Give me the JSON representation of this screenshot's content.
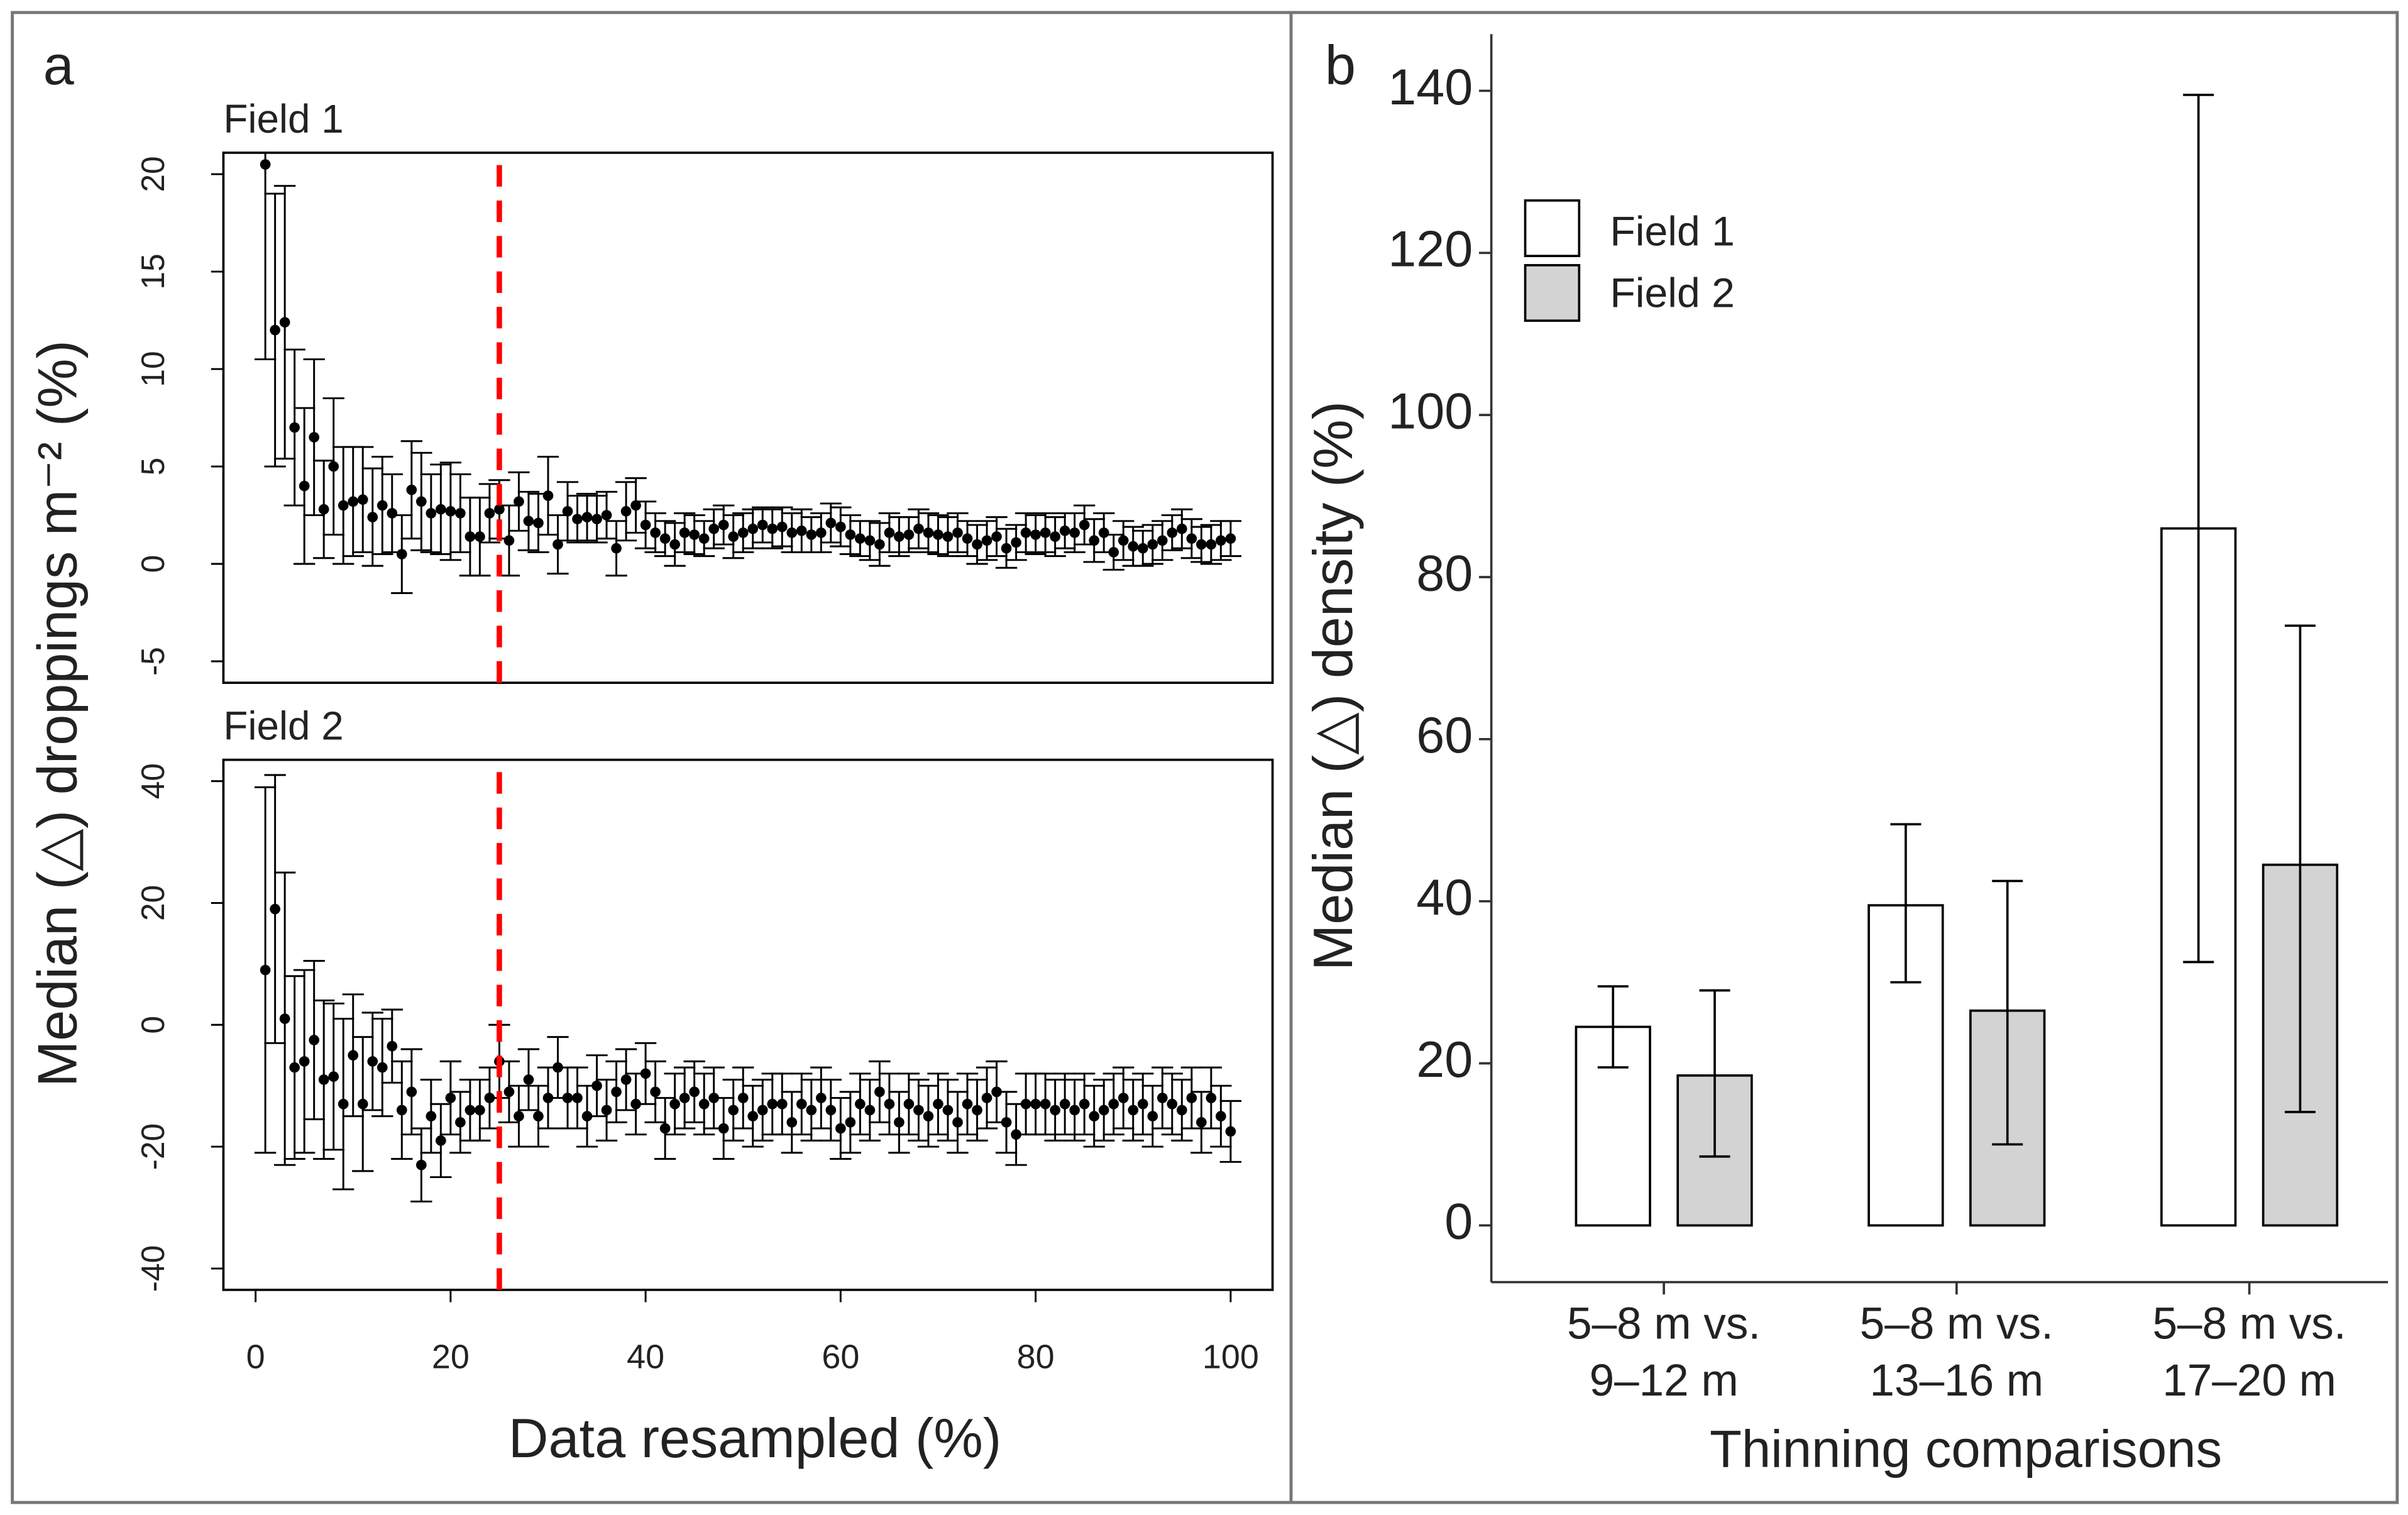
{
  "chart_data": [
    {
      "type": "scatter",
      "panel_label": "a",
      "title": "Field 1",
      "ylabel": "Median (△) droppings m⁻² (%)",
      "x": [
        1,
        2,
        3,
        4,
        5,
        6,
        7,
        8,
        9,
        10,
        11,
        12,
        13,
        14,
        15,
        16,
        17,
        18,
        19,
        20,
        21,
        22,
        23,
        24,
        25,
        26,
        27,
        28,
        29,
        30,
        31,
        32,
        33,
        34,
        35,
        36,
        37,
        38,
        39,
        40,
        41,
        42,
        43,
        44,
        45,
        46,
        47,
        48,
        49,
        50,
        51,
        52,
        53,
        54,
        55,
        56,
        57,
        58,
        59,
        60,
        61,
        62,
        63,
        64,
        65,
        66,
        67,
        68,
        69,
        70,
        71,
        72,
        73,
        74,
        75,
        76,
        77,
        78,
        79,
        80,
        81,
        82,
        83,
        84,
        85,
        86,
        87,
        88,
        89,
        90,
        91,
        92,
        93,
        94,
        95,
        96,
        97,
        98,
        99,
        100
      ],
      "values": [
        20.5,
        12,
        12.4,
        7,
        4,
        6.5,
        2.8,
        5,
        3,
        3.2,
        3.3,
        2.4,
        3,
        2.6,
        0.5,
        3.8,
        3.2,
        2.6,
        2.8,
        2.7,
        2.6,
        1.4,
        1.4,
        2.6,
        2.8,
        1.2,
        3.2,
        2.2,
        2.1,
        3.5,
        1,
        2.7,
        2.3,
        2.4,
        2.3,
        2.5,
        0.8,
        2.7,
        3,
        2,
        1.6,
        1.3,
        1,
        1.6,
        1.5,
        1.3,
        1.8,
        2,
        1.4,
        1.6,
        1.8,
        2,
        1.8,
        1.9,
        1.6,
        1.7,
        1.5,
        1.6,
        2.1,
        1.9,
        1.5,
        1.3,
        1.2,
        1,
        1.6,
        1.4,
        1.5,
        1.8,
        1.6,
        1.5,
        1.4,
        1.6,
        1.3,
        1,
        1.2,
        1.4,
        0.8,
        1.1,
        1.6,
        1.5,
        1.6,
        1.4,
        1.7,
        1.6,
        2,
        1.2,
        1.6,
        0.6,
        1.2,
        0.9,
        0.8,
        1,
        1.2,
        1.6,
        1.8,
        1.3,
        1,
        1,
        1.2,
        1.3
      ],
      "errors": [
        10,
        7,
        7,
        4,
        4,
        4,
        2.5,
        3.5,
        3,
        2.8,
        2.7,
        2.5,
        2.5,
        2,
        2,
        2.5,
        2.5,
        2,
        2.3,
        2.5,
        2,
        2,
        2,
        1.5,
        1.5,
        1.8,
        1.5,
        1.5,
        1.5,
        2,
        1.5,
        1.5,
        1.2,
        1.2,
        1.2,
        1.2,
        1.4,
        1.5,
        1.4,
        1.2,
        1,
        0.9,
        1.1,
        1,
        1,
        0.9,
        1,
        1,
        1.1,
        1,
        1,
        0.9,
        1,
        1,
        1,
        1.1,
        0.9,
        1,
        1,
        1,
        1,
        0.9,
        1,
        1.1,
        1,
        1,
        0.9,
        1,
        1,
        1,
        1,
        1,
        0.9,
        1,
        1,
        1,
        1,
        0.9,
        1,
        1,
        1,
        1,
        0.9,
        1,
        1,
        1.1,
        1,
        0.9,
        1,
        1,
        0.9,
        1,
        1,
        0.9,
        1,
        1,
        0.9,
        1,
        1,
        0.9
      ],
      "color": "#000000",
      "xlim": [
        -3.3,
        104.3
      ],
      "ylim": [
        -6.1,
        21.1
      ],
      "yticks": [
        -5,
        0,
        5,
        10,
        15,
        20
      ],
      "vline": 25,
      "vline_color": "#ff0000"
    },
    {
      "type": "scatter",
      "title": "Field 2",
      "xlabel": "Data resampled (%)",
      "x": [
        1,
        2,
        3,
        4,
        5,
        6,
        7,
        8,
        9,
        10,
        11,
        12,
        13,
        14,
        15,
        16,
        17,
        18,
        19,
        20,
        21,
        22,
        23,
        24,
        25,
        26,
        27,
        28,
        29,
        30,
        31,
        32,
        33,
        34,
        35,
        36,
        37,
        38,
        39,
        40,
        41,
        42,
        43,
        44,
        45,
        46,
        47,
        48,
        49,
        50,
        51,
        52,
        53,
        54,
        55,
        56,
        57,
        58,
        59,
        60,
        61,
        62,
        63,
        64,
        65,
        66,
        67,
        68,
        69,
        70,
        71,
        72,
        73,
        74,
        75,
        76,
        77,
        78,
        79,
        80,
        81,
        82,
        83,
        84,
        85,
        86,
        87,
        88,
        89,
        90,
        91,
        92,
        93,
        94,
        95,
        96,
        97,
        98,
        99,
        100
      ],
      "values": [
        9,
        19,
        1,
        -7,
        -6,
        -2.5,
        -9,
        -8.5,
        -13,
        -5,
        -13,
        -6,
        -7,
        -3.5,
        -14,
        -11,
        -23,
        -15,
        -19,
        -12,
        -16,
        -14,
        -14,
        -12,
        -6,
        -11,
        -15,
        -9,
        -15,
        -12,
        -7,
        -12,
        -12,
        -15,
        -10,
        -14,
        -11,
        -9,
        -13,
        -8,
        -11,
        -17,
        -13,
        -12,
        -11,
        -13,
        -12,
        -17,
        -14,
        -12,
        -15,
        -14,
        -13,
        -13,
        -16,
        -13,
        -14,
        -12,
        -14,
        -17,
        -16,
        -13,
        -14,
        -11,
        -13,
        -16,
        -13,
        -14,
        -15,
        -13,
        -14,
        -16,
        -13,
        -14,
        -12,
        -11,
        -16,
        -18,
        -13,
        -13,
        -13,
        -14,
        -13,
        -14,
        -13,
        -15,
        -14,
        -13,
        -12,
        -14,
        -13,
        -15,
        -12,
        -13,
        -14,
        -12,
        -16,
        -12,
        -15,
        -17.5
      ],
      "errors": [
        30,
        22,
        24,
        15,
        15,
        13,
        13,
        12,
        14,
        10,
        11,
        8,
        8,
        6,
        8,
        7,
        6,
        6,
        6,
        6,
        5,
        5,
        5,
        5,
        6,
        5,
        5,
        5,
        5,
        5,
        5,
        5,
        5,
        5,
        5,
        5,
        5,
        5,
        5,
        5,
        5,
        5,
        5,
        5,
        5,
        5,
        5,
        5,
        5,
        5,
        5,
        5,
        5,
        5,
        5,
        5,
        5,
        5,
        5,
        5,
        5,
        5,
        5,
        5,
        5,
        5,
        5,
        5,
        5,
        5,
        5,
        5,
        5,
        5,
        5,
        5,
        5,
        5,
        5,
        5,
        5,
        5,
        5,
        5,
        5,
        5,
        5,
        5,
        5,
        5,
        5,
        5,
        5,
        5,
        5,
        5,
        5,
        5,
        5,
        5
      ],
      "color": "#000000",
      "xlim": [
        -3.3,
        104.3
      ],
      "ylim": [
        -43.5,
        43.5
      ],
      "yticks": [
        -40,
        -20,
        0,
        20,
        40
      ],
      "xticks": [
        0,
        20,
        40,
        60,
        80,
        100
      ],
      "vline": 25,
      "vline_color": "#ff0000"
    },
    {
      "type": "bar",
      "panel_label": "b",
      "xlabel": "Thinning comparisons",
      "ylabel": "Median (△) density (%)",
      "categories": [
        [
          "5–8 m vs.",
          "9–12 m"
        ],
        [
          "5–8 m vs.",
          "13–16 m"
        ],
        [
          "5–8 m vs.",
          "17–20 m"
        ]
      ],
      "series": [
        {
          "name": "Field 1",
          "color": "#ffffff",
          "values": [
            24.5,
            39.5,
            86
          ],
          "lower": [
            19.5,
            30,
            32.5
          ],
          "upper": [
            29.5,
            49.5,
            139.5
          ]
        },
        {
          "name": "Field 2",
          "color": "#d3d3d3",
          "values": [
            18.5,
            26.5,
            44.5
          ],
          "lower": [
            8.5,
            10,
            14
          ],
          "upper": [
            29,
            42.5,
            74
          ]
        }
      ],
      "ylim": [
        -7,
        147
      ],
      "yticks": [
        0,
        20,
        40,
        60,
        80,
        100,
        120,
        140
      ],
      "legend": "upper-left"
    }
  ]
}
